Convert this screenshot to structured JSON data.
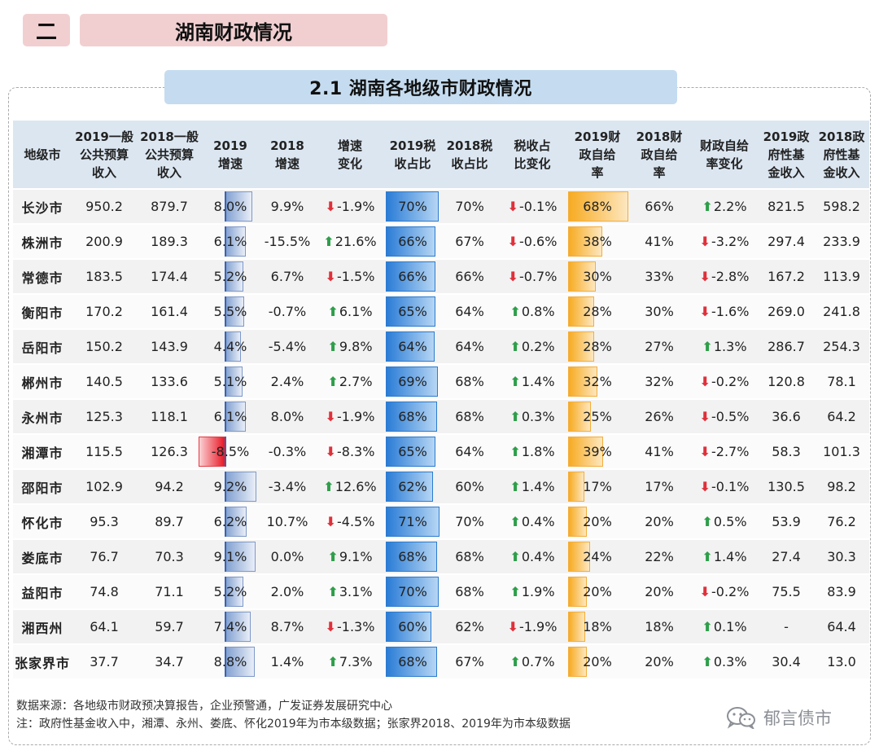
{
  "section": {
    "number": "二",
    "title": "湖南财政情况"
  },
  "subtitle": "2.1  湖南各地级市财政情况",
  "columns": [
    [
      "地级市"
    ],
    [
      "2019一般",
      "公共预算",
      "收入"
    ],
    [
      "2018一般",
      "公共预算",
      "收入"
    ],
    [
      "2019",
      "增速"
    ],
    [
      "2018",
      "增速"
    ],
    [
      "增速",
      "变化"
    ],
    [
      "2019税",
      "收占比"
    ],
    [
      "2018税",
      "收占比"
    ],
    [
      "税收占",
      "比变化"
    ],
    [
      "2019财",
      "政自给",
      "率"
    ],
    [
      "2018财",
      "政自给",
      "率"
    ],
    [
      "财政自给",
      "率变化"
    ],
    [
      "2019政",
      "府性基",
      "金收入"
    ],
    [
      "2018政",
      "府性基",
      "金收入"
    ]
  ],
  "rows": [
    {
      "city": "长沙市",
      "rev2019": "950.2",
      "rev2018": "879.7",
      "g2019": "8.0%",
      "g2018": "9.9%",
      "gchg": "-1.9%",
      "tax2019": "70%",
      "tax2018": "70%",
      "taxchg": "-0.1%",
      "self2019": "68%",
      "self2018": "66%",
      "selfchg": "2.2%",
      "fund2019": "821.5",
      "fund2018": "598.2",
      "g2019_val": 8.0,
      "gchg_dir": "down",
      "tax2019_val": 70,
      "taxchg_dir": "down",
      "self2019_val": 68,
      "selfchg_dir": "up"
    },
    {
      "city": "株洲市",
      "rev2019": "200.9",
      "rev2018": "189.3",
      "g2019": "6.1%",
      "g2018": "-15.5%",
      "gchg": "21.6%",
      "tax2019": "66%",
      "tax2018": "67%",
      "taxchg": "-0.6%",
      "self2019": "38%",
      "self2018": "41%",
      "selfchg": "-3.2%",
      "fund2019": "297.4",
      "fund2018": "233.9",
      "g2019_val": 6.1,
      "gchg_dir": "up",
      "tax2019_val": 66,
      "taxchg_dir": "down",
      "self2019_val": 38,
      "selfchg_dir": "down"
    },
    {
      "city": "常德市",
      "rev2019": "183.5",
      "rev2018": "174.4",
      "g2019": "5.2%",
      "g2018": "6.7%",
      "gchg": "-1.5%",
      "tax2019": "66%",
      "tax2018": "66%",
      "taxchg": "-0.7%",
      "self2019": "30%",
      "self2018": "33%",
      "selfchg": "-2.8%",
      "fund2019": "167.2",
      "fund2018": "113.9",
      "g2019_val": 5.2,
      "gchg_dir": "down",
      "tax2019_val": 66,
      "taxchg_dir": "down",
      "self2019_val": 30,
      "selfchg_dir": "down"
    },
    {
      "city": "衡阳市",
      "rev2019": "170.2",
      "rev2018": "161.4",
      "g2019": "5.5%",
      "g2018": "-0.7%",
      "gchg": "6.1%",
      "tax2019": "65%",
      "tax2018": "64%",
      "taxchg": "0.8%",
      "self2019": "28%",
      "self2018": "30%",
      "selfchg": "-1.6%",
      "fund2019": "269.0",
      "fund2018": "241.8",
      "g2019_val": 5.5,
      "gchg_dir": "up",
      "tax2019_val": 65,
      "taxchg_dir": "up",
      "self2019_val": 28,
      "selfchg_dir": "down"
    },
    {
      "city": "岳阳市",
      "rev2019": "150.2",
      "rev2018": "143.9",
      "g2019": "4.4%",
      "g2018": "-5.4%",
      "gchg": "9.8%",
      "tax2019": "64%",
      "tax2018": "64%",
      "taxchg": "0.2%",
      "self2019": "28%",
      "self2018": "27%",
      "selfchg": "1.3%",
      "fund2019": "286.7",
      "fund2018": "254.3",
      "g2019_val": 4.4,
      "gchg_dir": "up",
      "tax2019_val": 64,
      "taxchg_dir": "up",
      "self2019_val": 28,
      "selfchg_dir": "up"
    },
    {
      "city": "郴州市",
      "rev2019": "140.5",
      "rev2018": "133.6",
      "g2019": "5.1%",
      "g2018": "2.4%",
      "gchg": "2.7%",
      "tax2019": "69%",
      "tax2018": "68%",
      "taxchg": "1.4%",
      "self2019": "32%",
      "self2018": "32%",
      "selfchg": "-0.2%",
      "fund2019": "120.8",
      "fund2018": "78.1",
      "g2019_val": 5.1,
      "gchg_dir": "up",
      "tax2019_val": 69,
      "taxchg_dir": "up",
      "self2019_val": 32,
      "selfchg_dir": "down"
    },
    {
      "city": "永州市",
      "rev2019": "125.3",
      "rev2018": "118.1",
      "g2019": "6.1%",
      "g2018": "8.0%",
      "gchg": "-1.9%",
      "tax2019": "68%",
      "tax2018": "68%",
      "taxchg": "0.3%",
      "self2019": "25%",
      "self2018": "26%",
      "selfchg": "-0.5%",
      "fund2019": "36.6",
      "fund2018": "64.2",
      "g2019_val": 6.1,
      "gchg_dir": "down",
      "tax2019_val": 68,
      "taxchg_dir": "up",
      "self2019_val": 25,
      "selfchg_dir": "down"
    },
    {
      "city": "湘潭市",
      "rev2019": "115.5",
      "rev2018": "126.3",
      "g2019": "-8.5%",
      "g2018": "-0.3%",
      "gchg": "-8.3%",
      "tax2019": "65%",
      "tax2018": "64%",
      "taxchg": "1.8%",
      "self2019": "39%",
      "self2018": "41%",
      "selfchg": "-2.7%",
      "fund2019": "58.3",
      "fund2018": "101.3",
      "g2019_val": -8.5,
      "gchg_dir": "down",
      "tax2019_val": 65,
      "taxchg_dir": "up",
      "self2019_val": 39,
      "selfchg_dir": "down"
    },
    {
      "city": "邵阳市",
      "rev2019": "102.9",
      "rev2018": "94.2",
      "g2019": "9.2%",
      "g2018": "-3.4%",
      "gchg": "12.6%",
      "tax2019": "62%",
      "tax2018": "60%",
      "taxchg": "1.4%",
      "self2019": "17%",
      "self2018": "17%",
      "selfchg": "-0.1%",
      "fund2019": "130.5",
      "fund2018": "98.2",
      "g2019_val": 9.2,
      "gchg_dir": "up",
      "tax2019_val": 62,
      "taxchg_dir": "up",
      "self2019_val": 17,
      "selfchg_dir": "down"
    },
    {
      "city": "怀化市",
      "rev2019": "95.3",
      "rev2018": "89.7",
      "g2019": "6.2%",
      "g2018": "10.7%",
      "gchg": "-4.5%",
      "tax2019": "71%",
      "tax2018": "70%",
      "taxchg": "0.4%",
      "self2019": "20%",
      "self2018": "20%",
      "selfchg": "0.5%",
      "fund2019": "53.9",
      "fund2018": "76.2",
      "g2019_val": 6.2,
      "gchg_dir": "down",
      "tax2019_val": 71,
      "taxchg_dir": "up",
      "self2019_val": 20,
      "selfchg_dir": "up"
    },
    {
      "city": "娄底市",
      "rev2019": "76.7",
      "rev2018": "70.3",
      "g2019": "9.1%",
      "g2018": "0.0%",
      "gchg": "9.1%",
      "tax2019": "68%",
      "tax2018": "68%",
      "taxchg": "0.4%",
      "self2019": "24%",
      "self2018": "22%",
      "selfchg": "1.4%",
      "fund2019": "27.4",
      "fund2018": "30.3",
      "g2019_val": 9.1,
      "gchg_dir": "up",
      "tax2019_val": 68,
      "taxchg_dir": "up",
      "self2019_val": 24,
      "selfchg_dir": "up"
    },
    {
      "city": "益阳市",
      "rev2019": "74.8",
      "rev2018": "71.1",
      "g2019": "5.2%",
      "g2018": "2.0%",
      "gchg": "3.1%",
      "tax2019": "70%",
      "tax2018": "68%",
      "taxchg": "1.9%",
      "self2019": "20%",
      "self2018": "20%",
      "selfchg": "-0.2%",
      "fund2019": "75.5",
      "fund2018": "83.9",
      "g2019_val": 5.2,
      "gchg_dir": "up",
      "tax2019_val": 70,
      "taxchg_dir": "up",
      "self2019_val": 20,
      "selfchg_dir": "down"
    },
    {
      "city": "湘西州",
      "rev2019": "64.1",
      "rev2018": "59.7",
      "g2019": "7.4%",
      "g2018": "8.7%",
      "gchg": "-1.3%",
      "tax2019": "60%",
      "tax2018": "62%",
      "taxchg": "-1.9%",
      "self2019": "18%",
      "self2018": "18%",
      "selfchg": "0.1%",
      "fund2019": "-",
      "fund2018": "64.4",
      "g2019_val": 7.4,
      "gchg_dir": "down",
      "tax2019_val": 60,
      "taxchg_dir": "down",
      "self2019_val": 18,
      "selfchg_dir": "up"
    },
    {
      "city": "张家界市",
      "rev2019": "37.7",
      "rev2018": "34.7",
      "g2019": "8.8%",
      "g2018": "1.4%",
      "gchg": "7.3%",
      "tax2019": "68%",
      "tax2018": "67%",
      "taxchg": "0.7%",
      "self2019": "20%",
      "self2018": "20%",
      "selfchg": "0.3%",
      "fund2019": "30.4",
      "fund2018": "13.0",
      "g2019_val": 8.8,
      "gchg_dir": "up",
      "tax2019_val": 68,
      "taxchg_dir": "up",
      "self2019_val": 20,
      "selfchg_dir": "up"
    }
  ],
  "footer": {
    "source": "数据来源：各地级市财政预决算报告，企业预警通，广发证券发展研究中心",
    "note": "注：政府性基金收入中，湘潭、永州、娄底、怀化2019年为市本级数据；张家界2018、2019年为市本级数据"
  },
  "brand": {
    "name": "郁言债市",
    "icon": "wechat-icon"
  }
}
